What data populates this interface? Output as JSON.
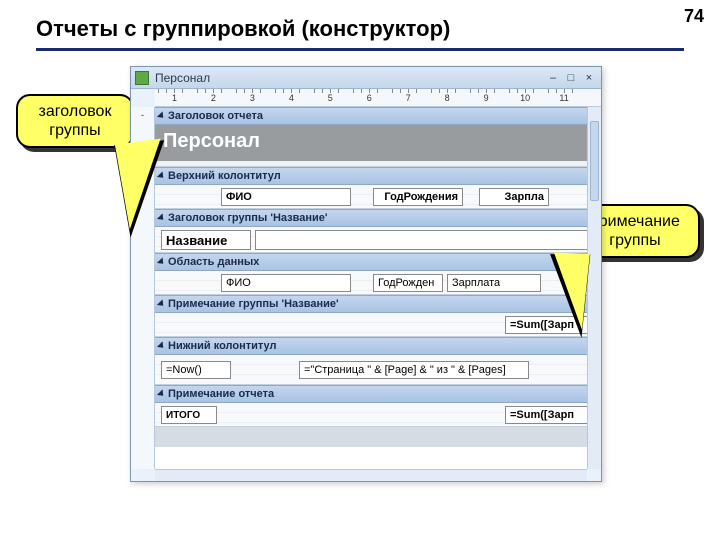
{
  "slide": {
    "title": "Отчеты с группировкой (конструктор)",
    "page_number": "74"
  },
  "window": {
    "title": "Персонал",
    "ruler_ticks": [
      "1",
      "2",
      "3",
      "4",
      "5",
      "6",
      "7",
      "8",
      "9",
      "10",
      "11"
    ]
  },
  "sections": {
    "report_header": {
      "bar": "Заголовок отчета",
      "title": "Персонал"
    },
    "page_header": {
      "bar": "Верхний колонтитул",
      "cols": {
        "fio": "ФИО",
        "year": "ГодРождения",
        "salary": "Зарпла"
      }
    },
    "group_header": {
      "bar": "Заголовок группы 'Название'",
      "field": "Название"
    },
    "detail": {
      "bar": "Область данных",
      "cols": {
        "fio": "ФИО",
        "year": "ГодРожден",
        "salary": "Зарплата"
      }
    },
    "group_footer": {
      "bar": "Примечание группы 'Название'",
      "sum": "=Sum([Зарп"
    },
    "page_footer": {
      "bar": "Нижний колонтитул",
      "now": "=Now()",
      "page_expr": "=\"Страница \" & [Page] & \" из \" & [Pages]"
    },
    "report_footer": {
      "bar": "Примечание отчета",
      "total": "ИТОГО",
      "sum": "=Sum([Зарп"
    }
  },
  "callouts": {
    "group_header": "заголовок группы",
    "group_footer": "примечание группы"
  },
  "colors": {
    "accent": "#1a2a6c",
    "callout_bg": "#ffff66",
    "section_bar_start": "#c3d6ef",
    "section_bar_end": "#a9c3e2"
  }
}
